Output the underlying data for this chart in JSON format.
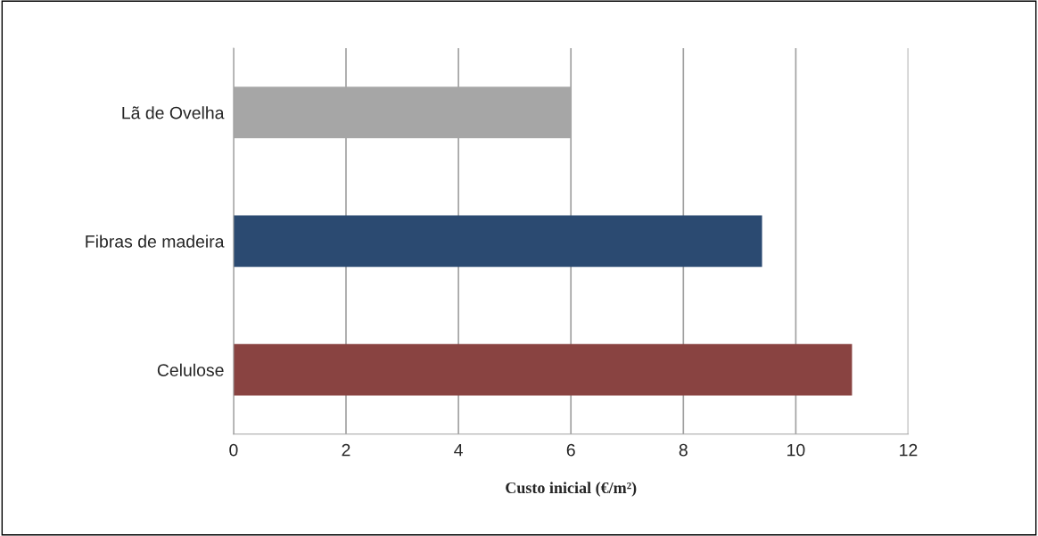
{
  "chart_data": {
    "type": "bar",
    "orientation": "horizontal",
    "categories": [
      "Lã de Ovelha",
      "Fibras de madeira",
      "Celulose"
    ],
    "values": [
      6,
      9.4,
      11
    ],
    "colors": [
      "#a6a6a6",
      "#1f497d",
      "#953735"
    ],
    "xlabel": "Custo inicial (€/m²)",
    "xlim": [
      0,
      12
    ],
    "xticks": [
      0,
      2,
      4,
      6,
      8,
      10,
      12
    ],
    "grid": "x"
  }
}
